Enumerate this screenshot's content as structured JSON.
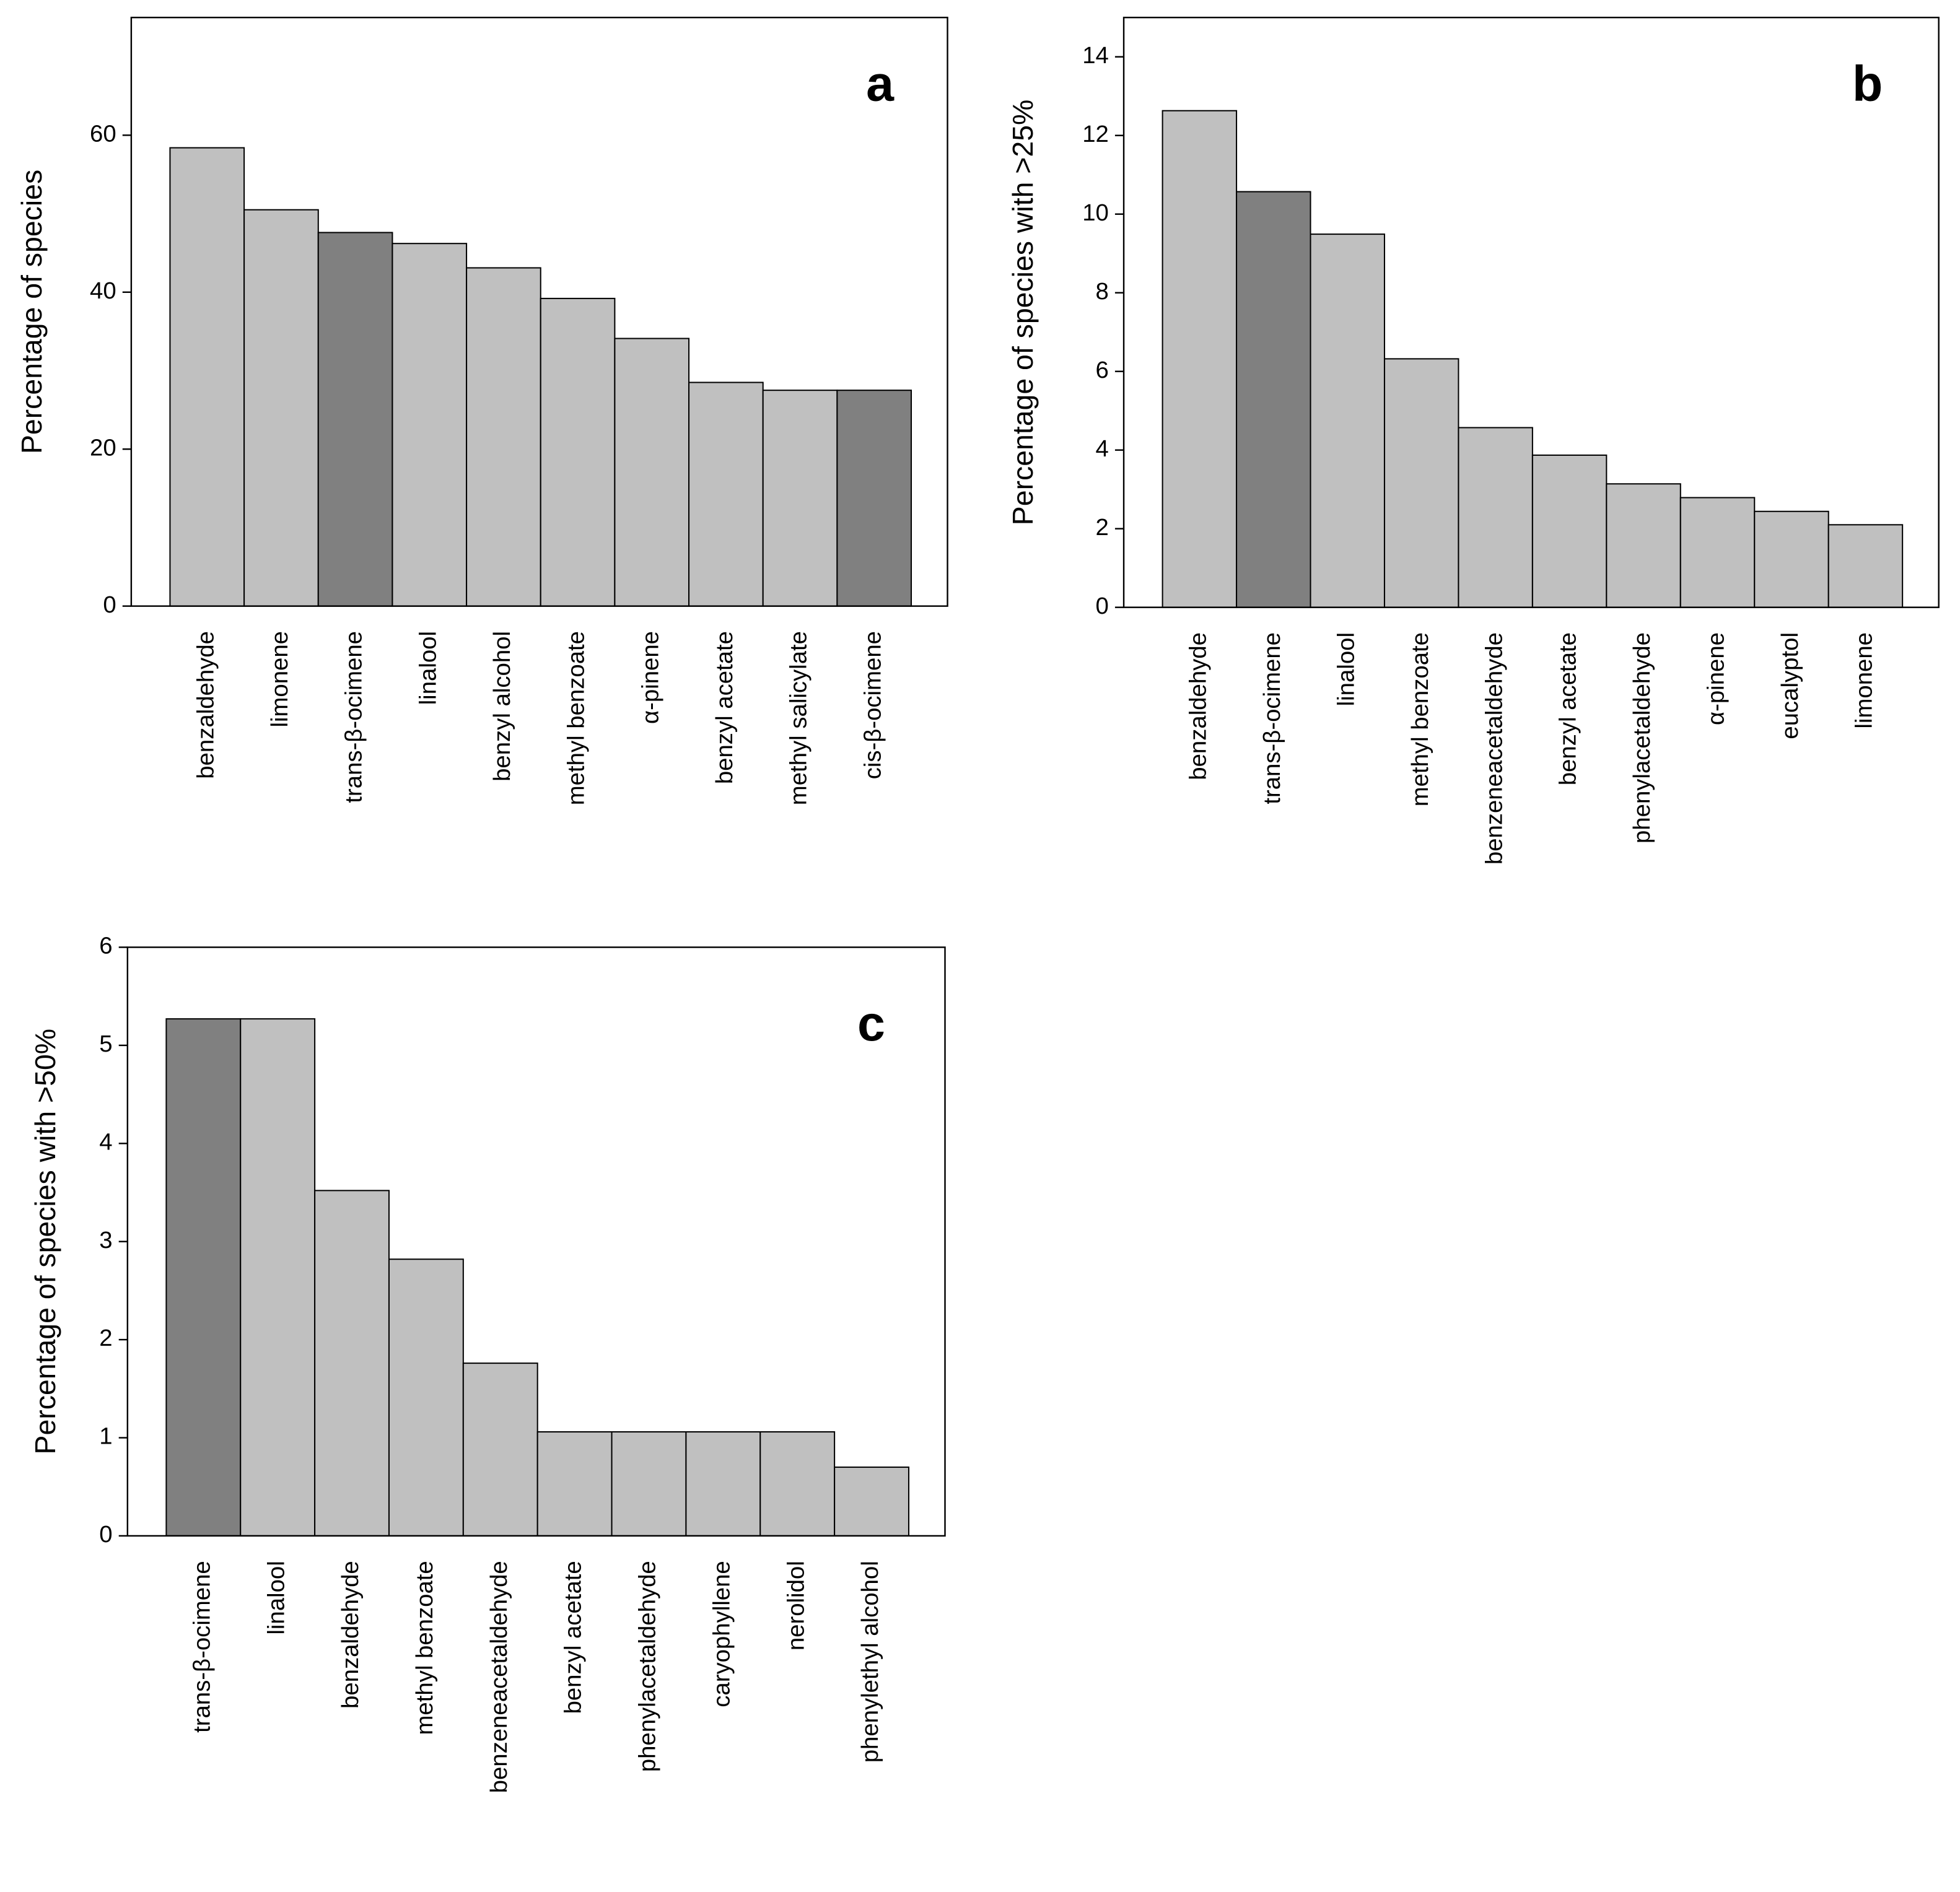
{
  "chart_data": [
    {
      "type": "bar",
      "panel_label": "a",
      "ylabel": "Percentage of species",
      "categories": [
        "benzaldehyde",
        "limonene",
        "trans-β-ocimene",
        "linalool",
        "benzyl alcohol",
        "methyl benzoate",
        "α-pinene",
        "benzyl acetate",
        "methyl salicylate",
        "cis-β-ocimene"
      ],
      "values": [
        58.4,
        50.5,
        47.6,
        46.2,
        43.1,
        39.2,
        34.1,
        28.5,
        27.5,
        27.5
      ],
      "colors": [
        "#c0c0c0",
        "#c0c0c0",
        "#808080",
        "#c0c0c0",
        "#c0c0c0",
        "#c0c0c0",
        "#c0c0c0",
        "#c0c0c0",
        "#c0c0c0",
        "#808080"
      ],
      "ylim": [
        0,
        75
      ],
      "yticks": [
        0,
        20,
        40,
        60
      ],
      "grid": false
    },
    {
      "type": "bar",
      "panel_label": "b",
      "ylabel": "Percentage of species with >25%",
      "categories": [
        "benzaldehyde",
        "trans-β-ocimene",
        "linalool",
        "methyl benzoate",
        "benzeneacetaldehyde",
        "benzyl acetate",
        "phenylacetaldehyde",
        "α-pinene",
        "eucalyptol",
        "limonene"
      ],
      "values": [
        12.63,
        10.57,
        9.49,
        6.32,
        4.57,
        3.87,
        3.14,
        2.79,
        2.44,
        2.1
      ],
      "colors": [
        "#c0c0c0",
        "#808080",
        "#c0c0c0",
        "#c0c0c0",
        "#c0c0c0",
        "#c0c0c0",
        "#c0c0c0",
        "#c0c0c0",
        "#c0c0c0",
        "#c0c0c0"
      ],
      "ylim": [
        0,
        15
      ],
      "yticks": [
        0,
        2,
        4,
        6,
        8,
        10,
        12,
        14
      ],
      "grid": false
    },
    {
      "type": "bar",
      "panel_label": "c",
      "ylabel": "Percentage of species with >50%",
      "categories": [
        "trans-β-ocimene",
        "linalool",
        "benzaldehyde",
        "methyl benzoate",
        "benzeneacetaldehyde",
        "benzyl acetate",
        "phenylacetaldehyde",
        "caryophyllene",
        "nerolidol",
        "phenylethyl alcohol"
      ],
      "values": [
        5.27,
        5.27,
        3.52,
        2.82,
        1.76,
        1.06,
        1.06,
        1.06,
        1.06,
        0.7
      ],
      "colors": [
        "#808080",
        "#c0c0c0",
        "#c0c0c0",
        "#c0c0c0",
        "#c0c0c0",
        "#c0c0c0",
        "#c0c0c0",
        "#c0c0c0",
        "#c0c0c0",
        "#c0c0c0"
      ],
      "ylim": [
        0,
        6
      ],
      "yticks": [
        0,
        1,
        2,
        3,
        4,
        5,
        6
      ],
      "grid": false
    }
  ]
}
